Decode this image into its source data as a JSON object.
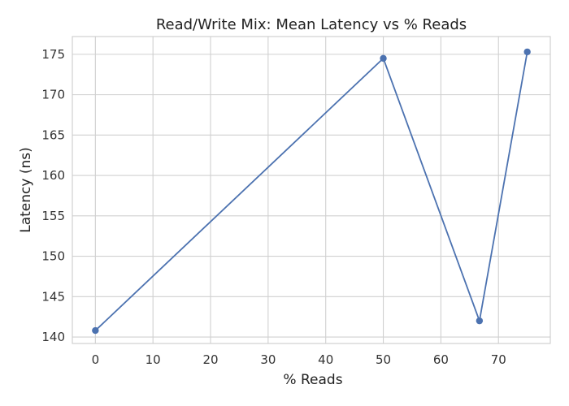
{
  "chart_data": {
    "type": "line",
    "title": "Read/Write Mix: Mean Latency vs % Reads",
    "xlabel": "% Reads",
    "ylabel": "Latency (ns)",
    "xlim": [
      -4,
      79
    ],
    "ylim": [
      139.2,
      177.2
    ],
    "xticks": [
      0,
      10,
      20,
      30,
      40,
      50,
      60,
      70
    ],
    "yticks": [
      140,
      145,
      150,
      155,
      160,
      165,
      170,
      175
    ],
    "grid": true,
    "series": [
      {
        "x": [
          0,
          50,
          66.7,
          75
        ],
        "values": [
          140.8,
          174.5,
          142.0,
          175.3
        ],
        "color": "#4c72b0",
        "marker": "circle"
      }
    ]
  }
}
